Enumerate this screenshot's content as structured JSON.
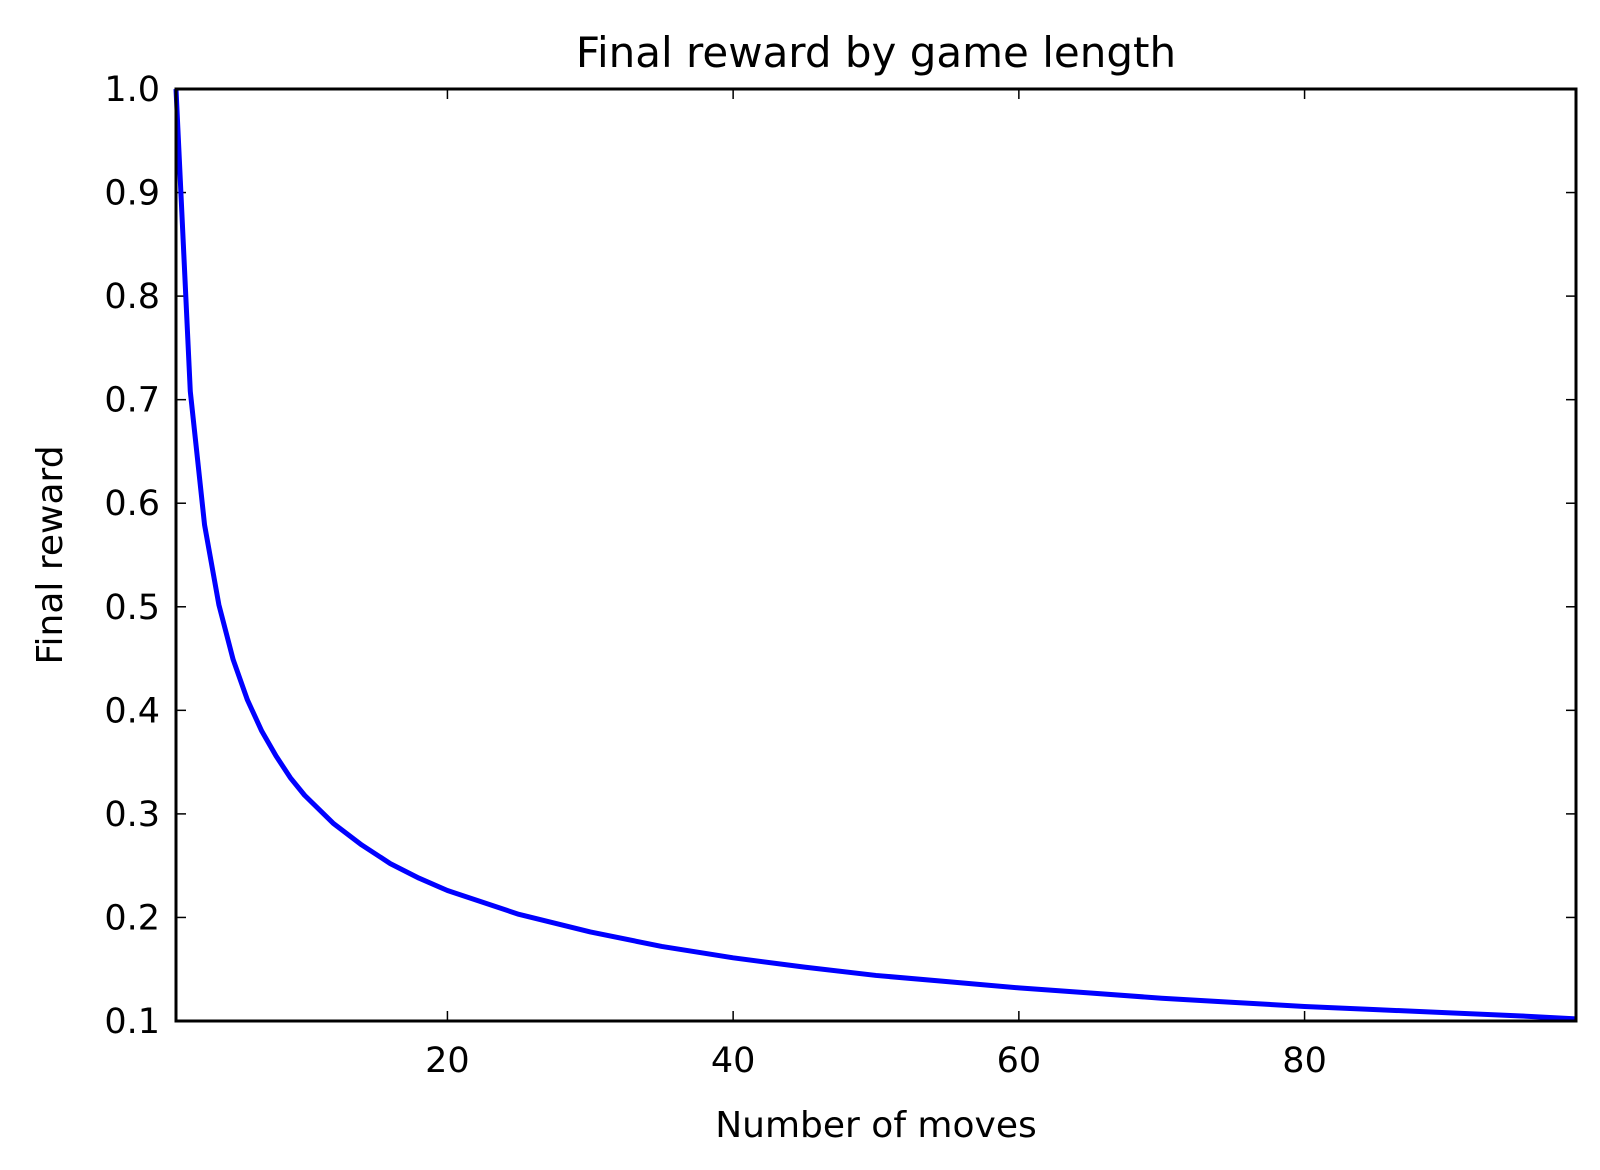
{
  "chart_data": {
    "type": "line",
    "title": "Final reward by game length",
    "xlabel": "Number of moves",
    "ylabel": "Final reward",
    "xlim": [
      1,
      99
    ],
    "ylim": [
      0.1,
      1.0
    ],
    "grid": false,
    "x_ticks": [
      20,
      40,
      60,
      80
    ],
    "x_tick_labels": [
      "20",
      "40",
      "60",
      "80"
    ],
    "y_ticks": [
      0.1,
      0.2,
      0.3,
      0.4,
      0.5,
      0.6,
      0.7,
      0.8,
      0.9,
      1.0
    ],
    "y_tick_labels": [
      "0.1",
      "0.2",
      "0.3",
      "0.4",
      "0.5",
      "0.6",
      "0.7",
      "0.8",
      "0.9",
      "1.0"
    ],
    "series": [
      {
        "color": "#0000ff",
        "x": [
          1,
          2,
          3,
          4,
          5,
          6,
          7,
          8,
          9,
          10,
          12,
          14,
          16,
          18,
          20,
          25,
          30,
          35,
          40,
          45,
          50,
          55,
          60,
          65,
          70,
          75,
          80,
          85,
          90,
          95,
          99
        ],
        "y": [
          1.0,
          0.708,
          0.579,
          0.502,
          0.449,
          0.41,
          0.38,
          0.356,
          0.335,
          0.318,
          0.291,
          0.27,
          0.252,
          0.238,
          0.226,
          0.203,
          0.186,
          0.172,
          0.161,
          0.152,
          0.144,
          0.138,
          0.132,
          0.127,
          0.122,
          0.118,
          0.114,
          0.111,
          0.108,
          0.105,
          0.102
        ]
      }
    ]
  }
}
